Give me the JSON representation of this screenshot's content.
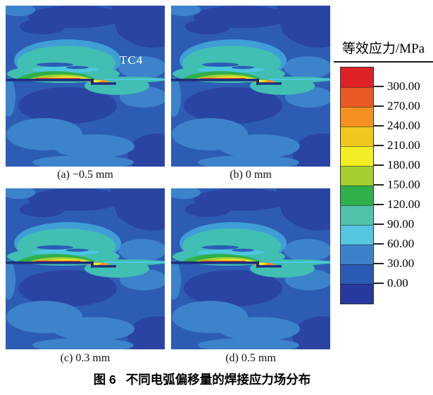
{
  "figure": {
    "caption_label": "图 6",
    "caption_title": "不同电弧偏移量的焊接应力场分布"
  },
  "panels": [
    {
      "caption": "(a) −0.5 mm",
      "material_label": "TC4"
    },
    {
      "caption": "(b) 0 mm"
    },
    {
      "caption": "(c) 0.3 mm"
    },
    {
      "caption": "(d) 0.5 mm"
    }
  ],
  "legend": {
    "title": "等效应力/MPa",
    "ticks": [
      "300.00",
      "270.00",
      "240.00",
      "210.00",
      "180.00",
      "150.00",
      "120.00",
      "90.00",
      "60.00",
      "30.00",
      "0.00"
    ],
    "colors": [
      "#dc2127",
      "#e95a25",
      "#f59120",
      "#f0c81d",
      "#f2ed25",
      "#a4cf2f",
      "#2fb04b",
      "#52c3ab",
      "#54c6e0",
      "#3c82ca",
      "#2a5ab5",
      "#27389f"
    ]
  },
  "chart_data": {
    "type": "heatmap",
    "subtype": "welding-equivalent-stress-contour",
    "title": "图 6 不同电弧偏移量的焊接应力场分布",
    "panels": [
      {
        "label": "(a)",
        "arc_offset_mm": -0.5
      },
      {
        "label": "(b)",
        "arc_offset_mm": 0
      },
      {
        "label": "(c)",
        "arc_offset_mm": 0.3
      },
      {
        "label": "(d)",
        "arc_offset_mm": 0.5
      }
    ],
    "colorbar": {
      "label": "等效应力/MPa",
      "tick_values": [
        300,
        270,
        240,
        210,
        180,
        150,
        120,
        90,
        60,
        30,
        0
      ],
      "tick_step": 30,
      "segments": 12,
      "orientation": "vertical",
      "position": "right"
    },
    "annotation": "TC4"
  }
}
